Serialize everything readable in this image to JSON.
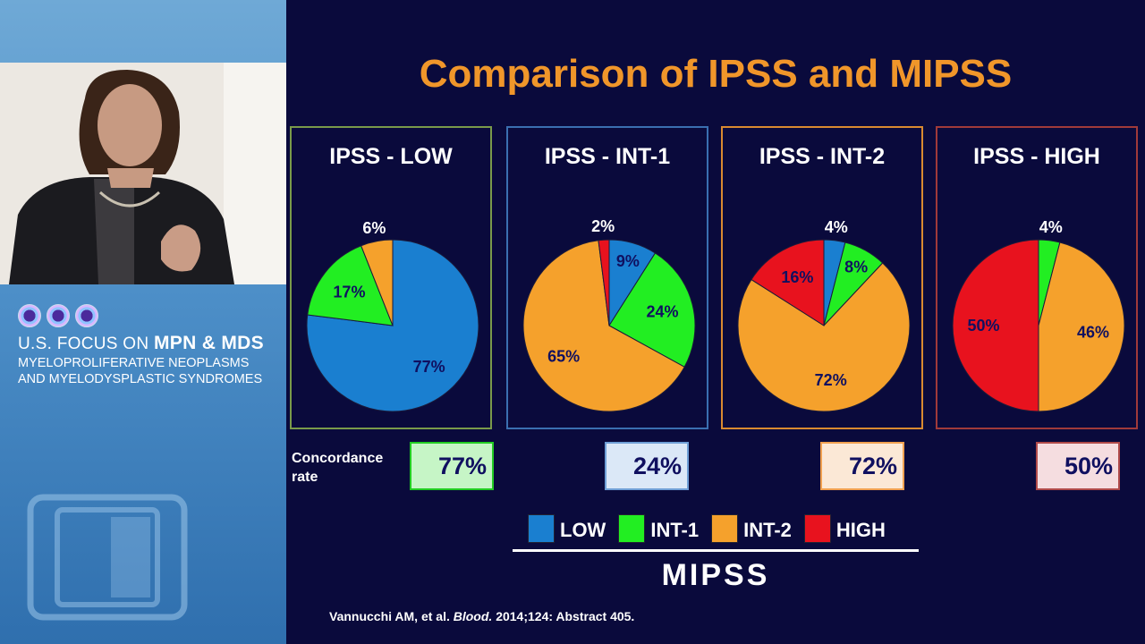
{
  "slide": {
    "title": "Comparison of IPSS and MIPSS",
    "concordance_label": "Concordance rate",
    "mipss_label": "MIPSS",
    "citation_prefix": "Vannucchi AM, et al.",
    "citation_journal": "Blood.",
    "citation_suffix": "2014;124: Abstract 405."
  },
  "sidebar": {
    "line1_prefix": "U.S. FOCUS ON",
    "line1_bold": "MPN & MDS",
    "line2": "MYELOPROLIFERATIVE NEOPLASMS",
    "line3": "AND MYELODYSPLASTIC SYNDROMES"
  },
  "colors": {
    "low": "#1a7fd0",
    "int1": "#22ee22",
    "int2": "#f5a12c",
    "high": "#e8121e",
    "title": "#f0962a",
    "background": "#0a0a3c"
  },
  "legend": [
    {
      "key": "low",
      "label": "LOW",
      "color": "#1a7fd0"
    },
    {
      "key": "int1",
      "label": "INT-1",
      "color": "#22ee22"
    },
    {
      "key": "int2",
      "label": "INT-2",
      "color": "#f5a12c"
    },
    {
      "key": "high",
      "label": "HIGH",
      "color": "#e8121e"
    }
  ],
  "chart_data": [
    {
      "type": "pie",
      "title": "IPSS - LOW",
      "border_color": "#7a9a4a",
      "concordance": "77%",
      "concordance_bg": "#c6f5c6",
      "concordance_border": "#22cc22",
      "slices": [
        {
          "category": "LOW",
          "value": 77,
          "label": "77%"
        },
        {
          "category": "INT-1",
          "value": 17,
          "label": "17%"
        },
        {
          "category": "INT-2",
          "value": 6,
          "label": "6%"
        }
      ]
    },
    {
      "type": "pie",
      "title": "IPSS - INT-1",
      "border_color": "#3a6fb0",
      "concordance": "24%",
      "concordance_bg": "#dbe8f7",
      "concordance_border": "#6f9fd6",
      "slices": [
        {
          "category": "LOW",
          "value": 9,
          "label": "9%"
        },
        {
          "category": "INT-1",
          "value": 24,
          "label": "24%"
        },
        {
          "category": "INT-2",
          "value": 65,
          "label": "65%"
        },
        {
          "category": "HIGH",
          "value": 2,
          "label": "2%"
        }
      ]
    },
    {
      "type": "pie",
      "title": "IPSS - INT-2",
      "border_color": "#d98a30",
      "concordance": "72%",
      "concordance_bg": "#fbe8d6",
      "concordance_border": "#f0a050",
      "slices": [
        {
          "category": "LOW",
          "value": 4,
          "label": "4%"
        },
        {
          "category": "INT-1",
          "value": 8,
          "label": "8%"
        },
        {
          "category": "INT-2",
          "value": 72,
          "label": "72%"
        },
        {
          "category": "HIGH",
          "value": 16,
          "label": "16%"
        }
      ]
    },
    {
      "type": "pie",
      "title": "IPSS - HIGH",
      "border_color": "#a03a3a",
      "concordance": "50%",
      "concordance_bg": "#f5dde0",
      "concordance_border": "#b04a4a",
      "slices": [
        {
          "category": "INT-1",
          "value": 4,
          "label": "4%"
        },
        {
          "category": "INT-2",
          "value": 46,
          "label": "46%"
        },
        {
          "category": "HIGH",
          "value": 50,
          "label": "50%"
        }
      ]
    }
  ]
}
